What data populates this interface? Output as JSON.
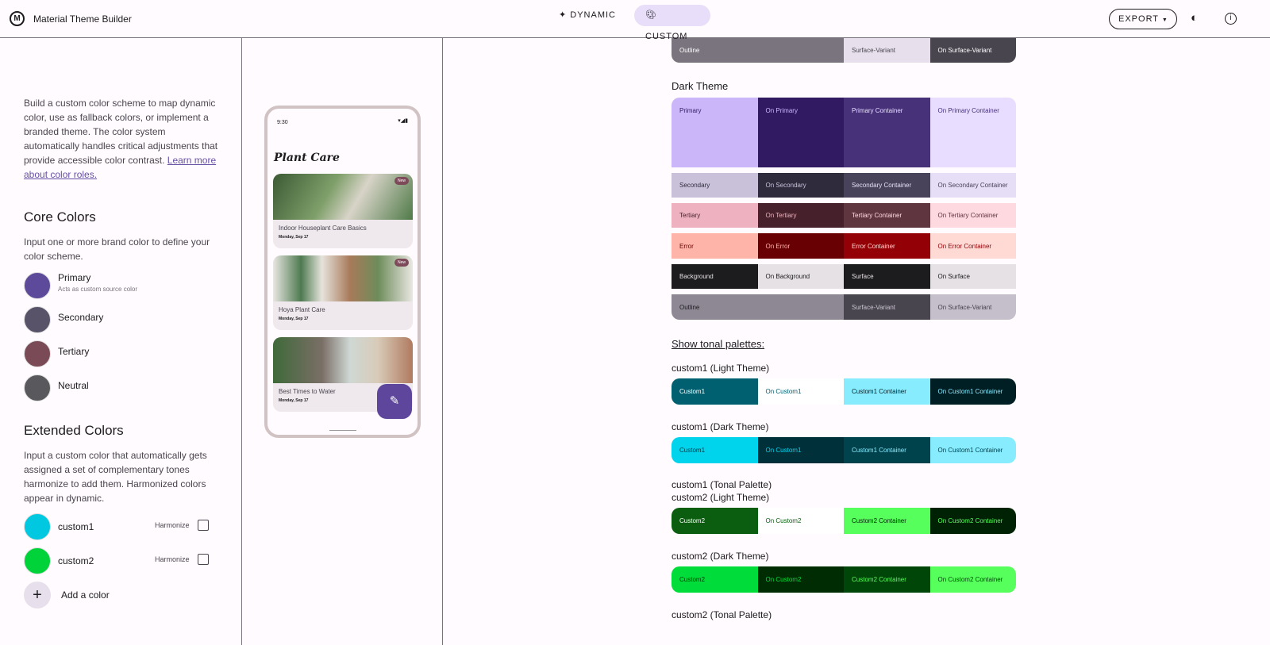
{
  "header": {
    "title": "Material Theme Builder",
    "logo": "M",
    "dynamic": "DYNAMIC",
    "custom": "CUSTOM",
    "export": "EXPORT",
    "dynamic_icon": "sparkle-icon",
    "custom_icon": "palette-icon",
    "theme_icon": "brightness-icon",
    "info_icon": "info-icon"
  },
  "left": {
    "intro": "Build a custom color scheme to map dynamic color, use as fallback colors, or implement a branded theme. The color system automatically handles critical adjustments that provide accessible color contrast.",
    "learn_more": "Learn more about color roles.",
    "core_title": "Core Colors",
    "core_desc": "Input one or more brand color to define your color scheme.",
    "core": [
      {
        "label": "Primary",
        "sub": "Acts as custom source color",
        "color": "#5e4a9a"
      },
      {
        "label": "Secondary",
        "color": "#595369"
      },
      {
        "label": "Tertiary",
        "color": "#7a4a56"
      },
      {
        "label": "Neutral",
        "color": "#59585c"
      }
    ],
    "ext_title": "Extended Colors",
    "ext_desc": "Input a custom color that automatically gets assigned a set of complementary tones harmonize to add them. Harmonized colors appear in dynamic.",
    "ext": [
      {
        "label": "custom1",
        "color": "#00c8e0",
        "harmonize": "Harmonize",
        "checked": false
      },
      {
        "label": "custom2",
        "color": "#00d23a",
        "harmonize": "Harmonize",
        "checked": false
      }
    ],
    "add": "Add a color"
  },
  "phone": {
    "time": "9:30",
    "title": "Plant Care",
    "cards": [
      {
        "title": "Indoor Houseplant Care Basics",
        "date": "Monday, Sep 17",
        "badge": "New"
      },
      {
        "title": "Hoya Plant Care",
        "date": "Monday, Sep 17",
        "badge": "New"
      },
      {
        "title": "Best Times to Water",
        "date": "Monday, Sep 17"
      }
    ]
  },
  "scheme": {
    "light_outline_row": [
      {
        "label": "Outline",
        "bg": "#79747e",
        "fg": "#ffffff",
        "span": 2
      },
      {
        "label": "Surface-Variant",
        "bg": "#e7e0ec",
        "fg": "#49454f"
      },
      {
        "label": "On Surface-Variant",
        "bg": "#49454f",
        "fg": "#ffffff"
      }
    ],
    "dark_title": "Dark Theme",
    "dark_rows": [
      [
        {
          "label": "Primary",
          "bg": "#cbb6fa",
          "fg": "#311a62"
        },
        {
          "label": "On Primary",
          "bg": "#311a62",
          "fg": "#cbb6fa"
        },
        {
          "label": "Primary Container",
          "bg": "#47327a",
          "fg": "#e8ddff"
        },
        {
          "label": "On Primary Container",
          "bg": "#e8ddff",
          "fg": "#47327a"
        }
      ],
      [
        {
          "label": "Secondary",
          "bg": "#c9c1d9",
          "fg": "#312c3e"
        },
        {
          "label": "On Secondary",
          "bg": "#2f2a3c",
          "fg": "#c9c1d9"
        },
        {
          "label": "Secondary Container",
          "bg": "#48435a",
          "fg": "#e6def6"
        },
        {
          "label": "On Secondary Container",
          "bg": "#e6def6",
          "fg": "#48435a"
        }
      ],
      [
        {
          "label": "Tertiary",
          "bg": "#eeb1bf",
          "fg": "#4a1f2b"
        },
        {
          "label": "On Tertiary",
          "bg": "#46202a",
          "fg": "#eeb1bf"
        },
        {
          "label": "Tertiary Container",
          "bg": "#5f353f",
          "fg": "#ffd9e0"
        },
        {
          "label": "On Tertiary Container",
          "bg": "#ffd9e0",
          "fg": "#5f353f"
        }
      ],
      [
        {
          "label": "Error",
          "bg": "#ffb4a9",
          "fg": "#680003"
        },
        {
          "label": "On Error",
          "bg": "#680003",
          "fg": "#ffb4a9"
        },
        {
          "label": "Error Container",
          "bg": "#930006",
          "fg": "#ffdad4"
        },
        {
          "label": "On Error Container",
          "bg": "#ffdad4",
          "fg": "#930006"
        }
      ],
      [
        {
          "label": "Background",
          "bg": "#1c1b1e",
          "fg": "#e6e1e5"
        },
        {
          "label": "On Background",
          "bg": "#e6e1e5",
          "fg": "#1c1b1e"
        },
        {
          "label": "Surface",
          "bg": "#1c1b1e",
          "fg": "#e6e1e5"
        },
        {
          "label": "On Surface",
          "bg": "#e6e1e5",
          "fg": "#1c1b1e"
        }
      ],
      [
        {
          "label": "Outline",
          "bg": "#8d8893",
          "fg": "#1c1b1e",
          "span": 2
        },
        {
          "label": "Surface-Variant",
          "bg": "#49454f",
          "fg": "#cac4d0"
        },
        {
          "label": "On Surface-Variant",
          "bg": "#c4bfcb",
          "fg": "#49454f"
        }
      ]
    ],
    "tonal_link": "Show tonal palettes:",
    "custom": [
      {
        "title": "custom1 (Light Theme)",
        "cells": [
          {
            "label": "Custom1",
            "bg": "#006070",
            "fg": "#ffffff"
          },
          {
            "label": "On Custom1",
            "bg": "#ffffff",
            "fg": "#006070"
          },
          {
            "label": "Custom1 Container",
            "bg": "#88ecff",
            "fg": "#001f25"
          },
          {
            "label": "On Custom1 Container",
            "bg": "#001f25",
            "fg": "#88ecff"
          }
        ]
      },
      {
        "title": "custom1 (Dark Theme)",
        "cells": [
          {
            "label": "Custom1",
            "bg": "#00d4ec",
            "fg": "#00363f"
          },
          {
            "label": "On Custom1",
            "bg": "#00303a",
            "fg": "#00d4ec"
          },
          {
            "label": "Custom1 Container",
            "bg": "#00434d",
            "fg": "#88ecff"
          },
          {
            "label": "On Custom1 Container",
            "bg": "#88ecff",
            "fg": "#00434d"
          }
        ]
      },
      {
        "title": "custom1 (Tonal Palette)"
      },
      {
        "title": "custom2 (Light Theme)",
        "cells": [
          {
            "label": "Custom2",
            "bg": "#0b5d10",
            "fg": "#ffffff"
          },
          {
            "label": "On Custom2",
            "bg": "#ffffff",
            "fg": "#0b5d10"
          },
          {
            "label": "Custom2 Container",
            "bg": "#56ff5c",
            "fg": "#002204"
          },
          {
            "label": "On Custom2 Container",
            "bg": "#002204",
            "fg": "#56ff5c"
          }
        ]
      },
      {
        "title": "custom2 (Dark Theme)",
        "cells": [
          {
            "label": "Custom2",
            "bg": "#00dd3a",
            "fg": "#003a05"
          },
          {
            "label": "On Custom2",
            "bg": "#002c04",
            "fg": "#00dd3a"
          },
          {
            "label": "Custom2 Container",
            "bg": "#004608",
            "fg": "#56ff5c"
          },
          {
            "label": "On Custom2 Container",
            "bg": "#56ff5c",
            "fg": "#004608"
          }
        ]
      },
      {
        "title": "custom2 (Tonal Palette)"
      }
    ]
  }
}
